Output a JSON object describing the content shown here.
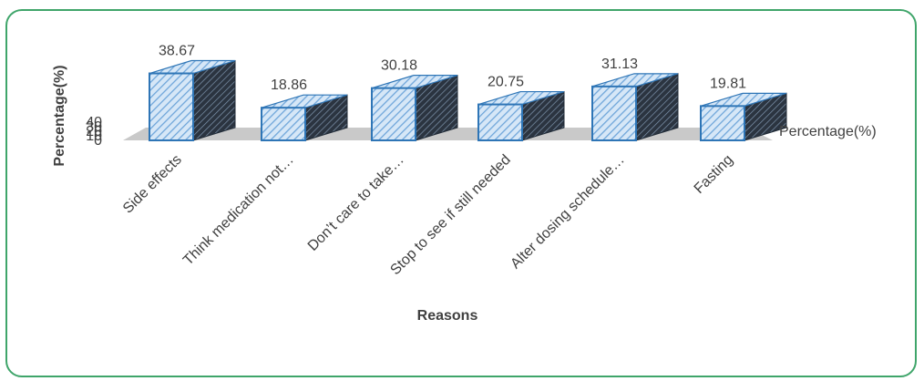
{
  "chart_data": {
    "type": "bar",
    "style": "3d-clustered-hatched",
    "categories": [
      "Side effects",
      "Think medication not…",
      "Don’t care to take…",
      "Stop to see if still needed",
      "Alter dosing schedule…",
      "Fasting"
    ],
    "series": [
      {
        "name": "Percentage(%)",
        "values": [
          38.67,
          18.86,
          30.18,
          20.75,
          31.13,
          19.81
        ]
      }
    ],
    "data_labels": [
      "38.67",
      "18.86",
      "30.18",
      "20.75",
      "31.13",
      "19.81"
    ],
    "title": "",
    "xlabel": "Reasons",
    "ylabel": "Percentage(%)",
    "yticks": [
      "0",
      "10",
      "20",
      "30",
      "40"
    ],
    "ylim": [
      0,
      40
    ],
    "legend": {
      "position": "right",
      "label": "Percentage(%)"
    },
    "colors": {
      "bar_fill": "#bcd8f2",
      "bar_hatch": "#5b9bd5",
      "bar_edge": "#2e75b6",
      "bar_side_dark": "#2f3a48",
      "floor": "#bfbfbf",
      "frame": "#3fa56a"
    }
  }
}
